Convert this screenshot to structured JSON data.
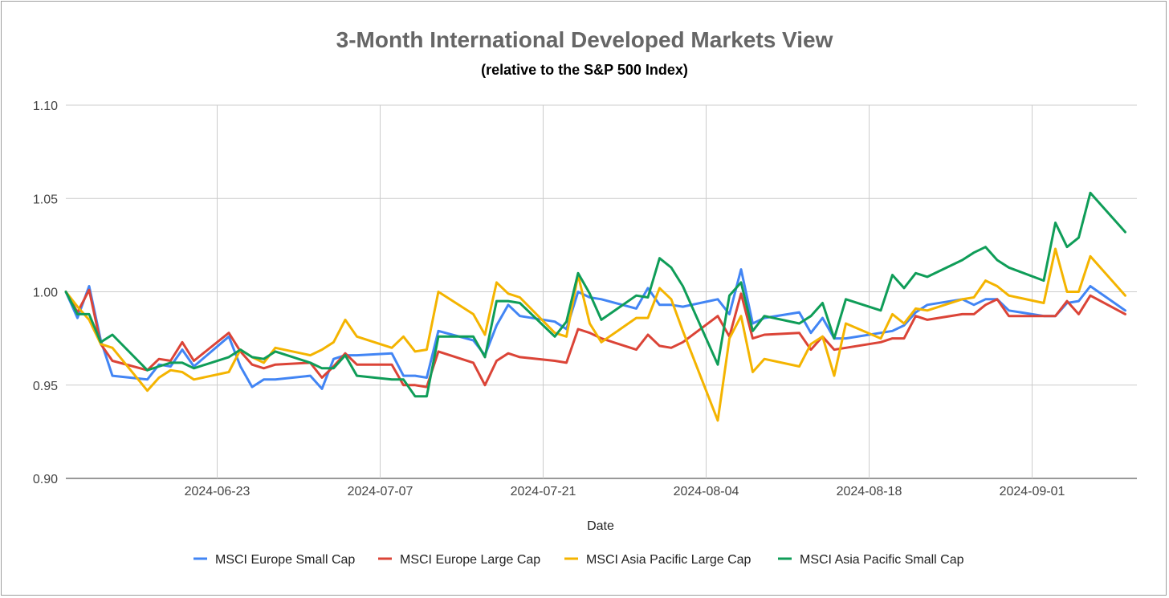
{
  "chart_data": {
    "type": "line",
    "title": "3-Month International Developed Markets View",
    "subtitle": "(relative to the S&P 500 Index)",
    "xlabel": "Date",
    "ylabel": "",
    "ylim": [
      0.9,
      1.1
    ],
    "yticks": [
      "0.90",
      "0.95",
      "1.00",
      "1.05",
      "1.10"
    ],
    "ytick_values": [
      0.9,
      0.95,
      1.0,
      1.05,
      1.1
    ],
    "x_start": "2024-06-10",
    "x_end": "2024-09-10",
    "xticks": [
      "2024-06-23",
      "2024-07-07",
      "2024-07-21",
      "2024-08-04",
      "2024-08-18",
      "2024-09-01"
    ],
    "grid": true,
    "legend_position": "bottom",
    "x": [
      0,
      1,
      2,
      3,
      4,
      7,
      8,
      9,
      10,
      11,
      14,
      15,
      16,
      17,
      18,
      21,
      22,
      23,
      24,
      25,
      28,
      29,
      30,
      31,
      32,
      35,
      36,
      37,
      38,
      39,
      42,
      43,
      44,
      45,
      46,
      49,
      50,
      51,
      52,
      53,
      56,
      57,
      58,
      59,
      60,
      63,
      64,
      65,
      66,
      67,
      70,
      71,
      72,
      73,
      74,
      77,
      78,
      79,
      80,
      81,
      84,
      85,
      86,
      87,
      88,
      91
    ],
    "series": [
      {
        "name": "MSCI Europe Small Cap",
        "color": "#4285f4",
        "values": [
          1.0,
          0.986,
          1.003,
          0.974,
          0.955,
          0.953,
          0.961,
          0.96,
          0.969,
          0.96,
          0.976,
          0.96,
          0.949,
          0.953,
          0.953,
          0.955,
          0.948,
          0.964,
          0.966,
          0.966,
          0.967,
          0.955,
          0.955,
          0.954,
          0.979,
          0.974,
          0.966,
          0.982,
          0.993,
          0.987,
          0.984,
          0.98,
          1.0,
          0.997,
          0.996,
          0.991,
          1.002,
          0.993,
          0.993,
          0.992,
          0.996,
          0.988,
          1.012,
          0.983,
          0.986,
          0.989,
          0.978,
          0.986,
          0.975,
          0.975,
          0.978,
          0.979,
          0.982,
          0.989,
          0.993,
          0.996,
          0.993,
          0.996,
          0.996,
          0.99,
          0.987,
          0.987,
          0.994,
          0.995,
          1.003,
          0.99
        ]
      },
      {
        "name": "MSCI Europe Large Cap",
        "color": "#db4437",
        "values": [
          1.0,
          0.989,
          1.001,
          0.972,
          0.963,
          0.958,
          0.964,
          0.963,
          0.973,
          0.963,
          0.978,
          0.968,
          0.961,
          0.959,
          0.961,
          0.962,
          0.954,
          0.96,
          0.967,
          0.961,
          0.961,
          0.95,
          0.95,
          0.949,
          0.968,
          0.962,
          0.95,
          0.963,
          0.967,
          0.965,
          0.963,
          0.962,
          0.98,
          0.978,
          0.975,
          0.969,
          0.977,
          0.971,
          0.97,
          0.973,
          0.987,
          0.976,
          0.999,
          0.975,
          0.977,
          0.978,
          0.969,
          0.976,
          0.969,
          0.97,
          0.973,
          0.975,
          0.975,
          0.987,
          0.985,
          0.988,
          0.988,
          0.993,
          0.996,
          0.987,
          0.987,
          0.987,
          0.995,
          0.988,
          0.998,
          0.988
        ]
      },
      {
        "name": "MSCI Asia Pacific Large Cap",
        "color": "#f4b400",
        "values": [
          1.0,
          0.992,
          0.985,
          0.972,
          0.97,
          0.947,
          0.954,
          0.958,
          0.957,
          0.953,
          0.957,
          0.969,
          0.965,
          0.962,
          0.97,
          0.966,
          0.969,
          0.973,
          0.985,
          0.976,
          0.97,
          0.976,
          0.968,
          0.969,
          1.0,
          0.988,
          0.977,
          1.005,
          0.999,
          0.997,
          0.978,
          0.976,
          1.009,
          0.983,
          0.973,
          0.986,
          0.986,
          1.002,
          0.996,
          0.979,
          0.931,
          0.975,
          0.987,
          0.957,
          0.964,
          0.96,
          0.972,
          0.976,
          0.955,
          0.983,
          0.975,
          0.988,
          0.983,
          0.991,
          0.99,
          0.996,
          0.997,
          1.006,
          1.003,
          0.998,
          0.994,
          1.023,
          1.0,
          1.0,
          1.019,
          0.998
        ]
      },
      {
        "name": "MSCI Asia Pacific Small Cap",
        "color": "#0f9d58",
        "values": [
          1.0,
          0.988,
          0.988,
          0.973,
          0.977,
          0.958,
          0.96,
          0.962,
          0.962,
          0.959,
          0.965,
          0.969,
          0.965,
          0.964,
          0.968,
          0.962,
          0.959,
          0.959,
          0.966,
          0.955,
          0.953,
          0.953,
          0.944,
          0.944,
          0.976,
          0.976,
          0.965,
          0.995,
          0.995,
          0.994,
          0.976,
          0.984,
          1.01,
          0.999,
          0.985,
          0.998,
          0.997,
          1.018,
          1.013,
          1.003,
          0.961,
          0.998,
          1.005,
          0.979,
          0.987,
          0.983,
          0.987,
          0.994,
          0.975,
          0.996,
          0.99,
          1.009,
          1.002,
          1.01,
          1.008,
          1.017,
          1.021,
          1.024,
          1.017,
          1.013,
          1.006,
          1.037,
          1.024,
          1.029,
          1.053,
          1.032
        ]
      }
    ]
  }
}
